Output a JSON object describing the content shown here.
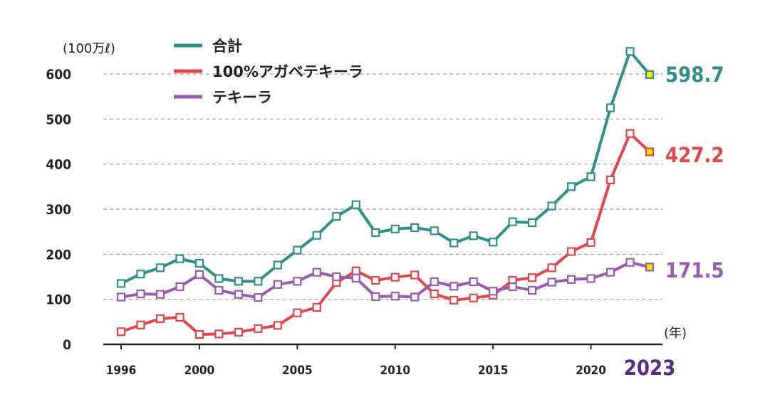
{
  "chart_data": {
    "type": "line",
    "y_unit_label": "(100万ℓ)",
    "x_unit_label": "(年)",
    "ylim": [
      0,
      600
    ],
    "yticks": [
      0,
      100,
      200,
      300,
      400,
      500,
      600
    ],
    "grid": "horizontal dashed",
    "legend_position": "top-left",
    "x": [
      1996,
      1997,
      1998,
      1999,
      2000,
      2001,
      2002,
      2003,
      2004,
      2005,
      2006,
      2007,
      2008,
      2009,
      2010,
      2011,
      2012,
      2013,
      2014,
      2015,
      2016,
      2017,
      2018,
      2019,
      2020,
      2021,
      2022,
      2023
    ],
    "xtick_labels": [
      "1996",
      "2000",
      "2005",
      "2010",
      "2015",
      "2020"
    ],
    "highlight_year_label": "2023",
    "series": [
      {
        "name": "合計",
        "color": "#2e8f8b",
        "end_label": "598.7",
        "values": [
          135,
          156,
          170,
          190,
          180,
          146,
          140,
          140,
          176,
          209,
          242,
          284,
          310,
          248,
          256,
          259,
          252,
          225,
          241,
          227,
          272,
          270,
          307,
          350,
          372,
          525,
          650,
          598.7
        ]
      },
      {
        "name": "100%アガベテキーラ",
        "color": "#e0464a",
        "end_label": "427.2",
        "values": [
          28,
          43,
          57,
          60,
          22,
          23,
          27,
          35,
          42,
          70,
          82,
          137,
          163,
          142,
          149,
          154,
          112,
          98,
          103,
          109,
          142,
          148,
          170,
          206,
          226,
          365,
          468,
          427.2
        ]
      },
      {
        "name": "テキーラ",
        "color": "#9a5ab0",
        "end_label": "171.5",
        "values": [
          105,
          112,
          111,
          128,
          155,
          120,
          111,
          104,
          133,
          140,
          160,
          150,
          147,
          106,
          107,
          105,
          139,
          129,
          139,
          118,
          128,
          120,
          138,
          144,
          146,
          160,
          182,
          171.5
        ]
      }
    ],
    "end_marker_color": "#ffe800",
    "highlight_year_color": "#5a2a86"
  }
}
